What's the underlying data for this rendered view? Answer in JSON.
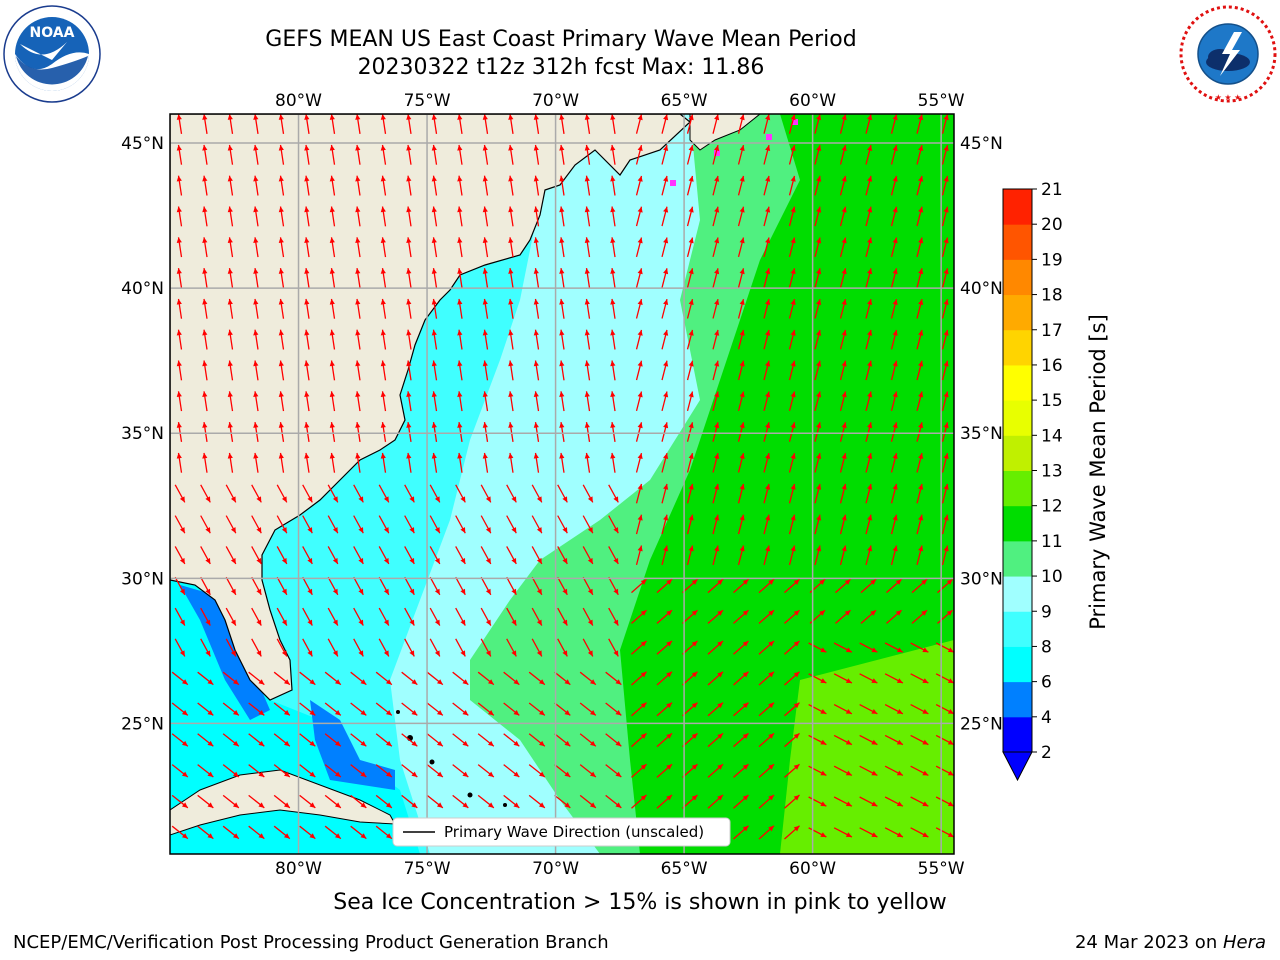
{
  "title": {
    "line1": "GEFS MEAN US East Coast Primary Wave Mean Period",
    "line2": "20230322 t12z 312h fcst   Max: 11.86"
  },
  "logos": {
    "left": {
      "name": "noaa-logo",
      "text": "NOAA",
      "ring_text": "NATIONAL OCEANIC AND ATMOSPHERIC ADMINISTRATION · U.S. DEPARTMENT OF COMMERCE"
    },
    "right": {
      "name": "nws-logo",
      "ring_text": "NATIONAL WEATHER SERVICE"
    }
  },
  "map": {
    "projection": "Plate Carree",
    "lon_range": [
      -85,
      -54.5
    ],
    "lat_range": [
      20.5,
      46
    ],
    "lon_ticks": [
      "80°W",
      "75°W",
      "70°W",
      "65°W",
      "60°W",
      "55°W"
    ],
    "lat_ticks": [
      "25°N",
      "30°N",
      "35°N",
      "40°N",
      "45°N"
    ],
    "legend_label": "Primary Wave Direction (unscaled)",
    "arrow_color": "#ff0000",
    "land_color": "#efecdc",
    "grid": true
  },
  "colorbar": {
    "label": "Primary Wave Mean Period [s]",
    "ticks": [
      "2",
      "4",
      "6",
      "8",
      "9",
      "10",
      "11",
      "12",
      "13",
      "14",
      "15",
      "16",
      "17",
      "18",
      "19",
      "20",
      "21"
    ],
    "colors": [
      "#0000ff",
      "#0080ff",
      "#00ffff",
      "#40ffff",
      "#a0ffff",
      "#50f080",
      "#00dd00",
      "#66ee00",
      "#c0f000",
      "#e8ff00",
      "#ffff00",
      "#ffd400",
      "#ffaa00",
      "#ff8800",
      "#ff5500",
      "#ff2200"
    ],
    "extend": "min"
  },
  "note": "Sea Ice Concentration > 15% is shown in pink to yellow",
  "footer": {
    "left": "NCEP/EMC/Verification Post Processing Product Generation Branch",
    "date": "24 Mar 2023 on ",
    "machine": "Hera"
  }
}
